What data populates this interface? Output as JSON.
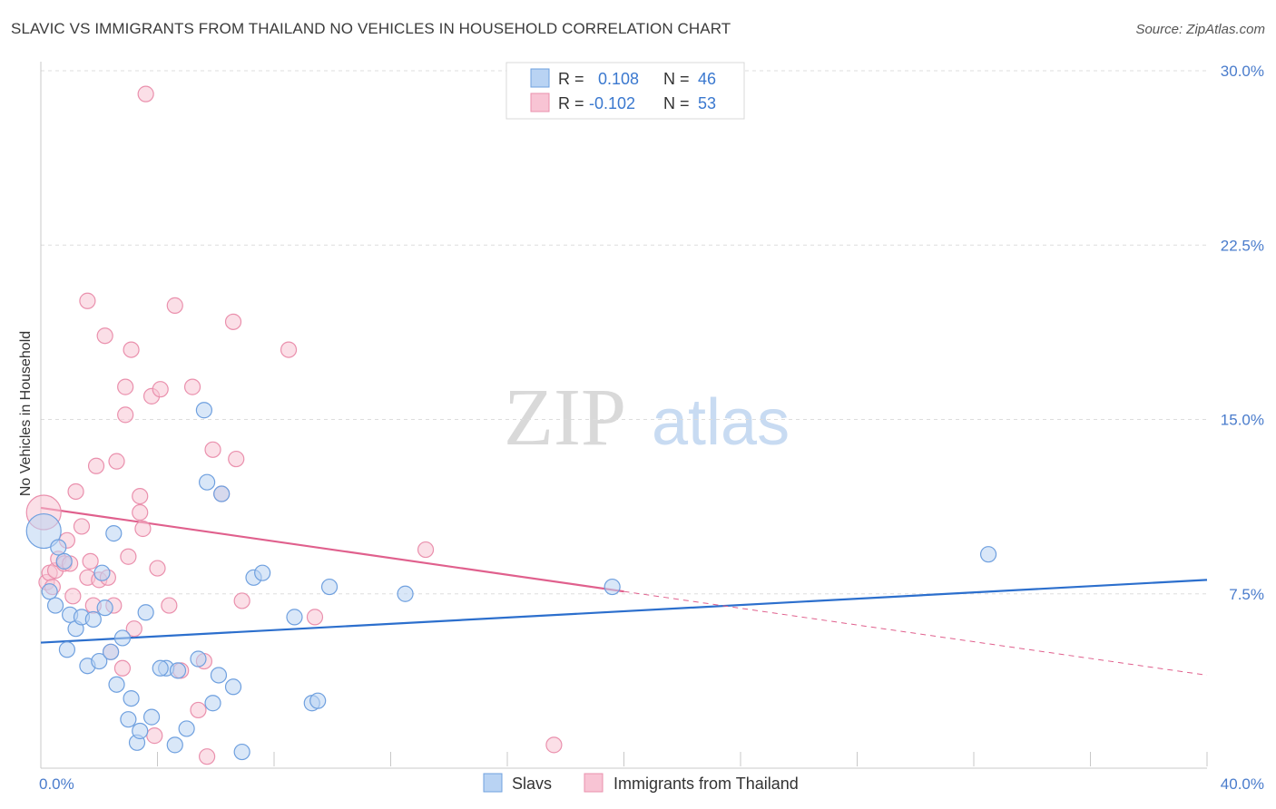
{
  "title": "SLAVIC VS IMMIGRANTS FROM THAILAND NO VEHICLES IN HOUSEHOLD CORRELATION CHART",
  "source": "Source: ZipAtlas.com",
  "watermark": {
    "zip": "ZIP",
    "atlas": "atlas"
  },
  "legend": {
    "rows": [
      {
        "r_label": "R =",
        "r_value": "0.108",
        "n_label": "N =",
        "n_value": "46"
      },
      {
        "r_label": "R =",
        "r_value": "-0.102",
        "n_label": "N =",
        "n_value": "53"
      }
    ]
  },
  "bottom_legend": [
    "Slavs",
    "Immigrants from Thailand"
  ],
  "colors": {
    "slavs_fill": "#b9d3f3",
    "slavs_stroke": "#6fa0df",
    "slavs_line": "#2c6fcd",
    "thai_fill": "#f8c4d4",
    "thai_stroke": "#ea90ad",
    "thai_line": "#e0608d",
    "axis_text": "#4a7ccc",
    "grid": "#dddddd"
  },
  "chart_data": {
    "type": "scatter",
    "title": "SLAVIC VS IMMIGRANTS FROM THAILAND NO VEHICLES IN HOUSEHOLD CORRELATION CHART",
    "xlabel": "",
    "ylabel": "No Vehicles in Household",
    "xlim": [
      0,
      40
    ],
    "ylim": [
      0,
      30
    ],
    "x_tick_labels": [
      {
        "value": 0,
        "label": "0.0%"
      },
      {
        "value": 40,
        "label": "40.0%"
      }
    ],
    "y_tick_labels": [
      {
        "value": 7.5,
        "label": "7.5%"
      },
      {
        "value": 15,
        "label": "15.0%"
      },
      {
        "value": 22.5,
        "label": "22.5%"
      },
      {
        "value": 30,
        "label": "30.0%"
      }
    ],
    "grid": "horizontal dashed",
    "legend_position": "top-center",
    "series": [
      {
        "name": "Slavs",
        "r": 0.108,
        "n": 46,
        "trend": {
          "x": [
            0,
            40
          ],
          "y": [
            5.4,
            8.1
          ]
        },
        "points": [
          {
            "x": 0.1,
            "y": 10.2,
            "big": true
          },
          {
            "x": 0.3,
            "y": 7.6
          },
          {
            "x": 0.5,
            "y": 7.0
          },
          {
            "x": 0.6,
            "y": 9.5
          },
          {
            "x": 0.8,
            "y": 8.9
          },
          {
            "x": 0.9,
            "y": 5.1
          },
          {
            "x": 1.0,
            "y": 6.6
          },
          {
            "x": 1.2,
            "y": 6.0
          },
          {
            "x": 1.4,
            "y": 6.5
          },
          {
            "x": 1.6,
            "y": 4.4
          },
          {
            "x": 1.8,
            "y": 6.4
          },
          {
            "x": 2.0,
            "y": 4.6
          },
          {
            "x": 2.1,
            "y": 8.4
          },
          {
            "x": 2.2,
            "y": 6.9
          },
          {
            "x": 2.4,
            "y": 5.0
          },
          {
            "x": 2.5,
            "y": 10.1
          },
          {
            "x": 2.6,
            "y": 3.6
          },
          {
            "x": 2.8,
            "y": 5.6
          },
          {
            "x": 3.0,
            "y": 2.1
          },
          {
            "x": 3.1,
            "y": 3.0
          },
          {
            "x": 3.3,
            "y": 1.1
          },
          {
            "x": 3.4,
            "y": 1.6
          },
          {
            "x": 3.6,
            "y": 6.7
          },
          {
            "x": 3.8,
            "y": 2.2
          },
          {
            "x": 4.3,
            "y": 4.3
          },
          {
            "x": 4.6,
            "y": 1.0
          },
          {
            "x": 4.7,
            "y": 4.2
          },
          {
            "x": 5.0,
            "y": 1.7
          },
          {
            "x": 5.4,
            "y": 4.7
          },
          {
            "x": 5.6,
            "y": 15.4
          },
          {
            "x": 5.7,
            "y": 12.3
          },
          {
            "x": 5.9,
            "y": 2.8
          },
          {
            "x": 6.1,
            "y": 4.0
          },
          {
            "x": 6.2,
            "y": 11.8
          },
          {
            "x": 6.6,
            "y": 3.5
          },
          {
            "x": 6.9,
            "y": 0.7
          },
          {
            "x": 7.3,
            "y": 8.2
          },
          {
            "x": 7.6,
            "y": 8.4
          },
          {
            "x": 8.7,
            "y": 6.5
          },
          {
            "x": 9.3,
            "y": 2.8
          },
          {
            "x": 9.5,
            "y": 2.9
          },
          {
            "x": 9.9,
            "y": 7.8
          },
          {
            "x": 12.5,
            "y": 7.5
          },
          {
            "x": 19.6,
            "y": 7.8
          },
          {
            "x": 32.5,
            "y": 9.2
          },
          {
            "x": 4.1,
            "y": 4.3
          }
        ]
      },
      {
        "name": "Immigrants from Thailand",
        "r": -0.102,
        "n": 53,
        "trend": {
          "x": [
            0,
            20
          ],
          "y": [
            11.2,
            7.6
          ]
        },
        "trend_extended": {
          "x": [
            20,
            40
          ],
          "y": [
            7.6,
            4.0
          ]
        },
        "points": [
          {
            "x": 0.1,
            "y": 11.0,
            "big": true
          },
          {
            "x": 0.2,
            "y": 8.0
          },
          {
            "x": 0.3,
            "y": 8.4
          },
          {
            "x": 0.5,
            "y": 8.5
          },
          {
            "x": 0.6,
            "y": 9.0
          },
          {
            "x": 0.8,
            "y": 8.8
          },
          {
            "x": 0.9,
            "y": 9.8
          },
          {
            "x": 1.0,
            "y": 8.8
          },
          {
            "x": 1.1,
            "y": 7.4
          },
          {
            "x": 1.2,
            "y": 11.9
          },
          {
            "x": 1.4,
            "y": 10.4
          },
          {
            "x": 1.6,
            "y": 20.1
          },
          {
            "x": 1.6,
            "y": 8.2
          },
          {
            "x": 1.8,
            "y": 7.0
          },
          {
            "x": 1.9,
            "y": 13.0
          },
          {
            "x": 2.0,
            "y": 8.1
          },
          {
            "x": 2.2,
            "y": 18.6
          },
          {
            "x": 2.3,
            "y": 8.2
          },
          {
            "x": 2.4,
            "y": 5.0
          },
          {
            "x": 2.5,
            "y": 7.0
          },
          {
            "x": 2.6,
            "y": 13.2
          },
          {
            "x": 2.8,
            "y": 4.3
          },
          {
            "x": 2.9,
            "y": 16.4
          },
          {
            "x": 2.9,
            "y": 15.2
          },
          {
            "x": 3.0,
            "y": 9.1
          },
          {
            "x": 3.1,
            "y": 18.0
          },
          {
            "x": 3.2,
            "y": 6.0
          },
          {
            "x": 3.4,
            "y": 11.7
          },
          {
            "x": 3.4,
            "y": 11.0
          },
          {
            "x": 3.5,
            "y": 10.3
          },
          {
            "x": 3.6,
            "y": 29.0
          },
          {
            "x": 3.8,
            "y": 16.0
          },
          {
            "x": 3.9,
            "y": 1.4
          },
          {
            "x": 4.0,
            "y": 8.6
          },
          {
            "x": 4.1,
            "y": 16.3
          },
          {
            "x": 4.4,
            "y": 7.0
          },
          {
            "x": 4.6,
            "y": 19.9
          },
          {
            "x": 4.8,
            "y": 4.2
          },
          {
            "x": 5.2,
            "y": 16.4
          },
          {
            "x": 5.4,
            "y": 2.5
          },
          {
            "x": 5.6,
            "y": 4.6
          },
          {
            "x": 5.7,
            "y": 0.5
          },
          {
            "x": 5.9,
            "y": 13.7
          },
          {
            "x": 6.2,
            "y": 11.8
          },
          {
            "x": 6.6,
            "y": 19.2
          },
          {
            "x": 6.7,
            "y": 13.3
          },
          {
            "x": 6.9,
            "y": 7.2
          },
          {
            "x": 8.5,
            "y": 18.0
          },
          {
            "x": 9.4,
            "y": 6.5
          },
          {
            "x": 13.2,
            "y": 9.4
          },
          {
            "x": 17.6,
            "y": 1.0
          },
          {
            "x": 1.7,
            "y": 8.9
          },
          {
            "x": 0.4,
            "y": 7.8
          }
        ]
      }
    ]
  }
}
